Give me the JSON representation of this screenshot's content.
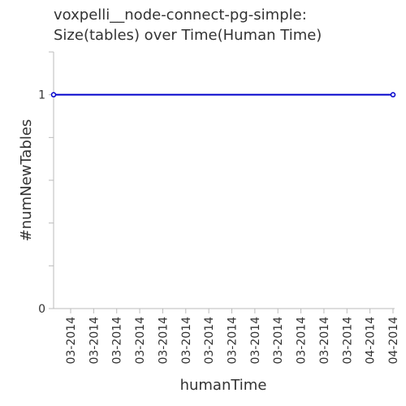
{
  "chart_data": {
    "type": "line",
    "title": [
      "voxpelli__node-connect-pg-simple:",
      "Size(tables) over Time(Human Time)"
    ],
    "xlabel": "humanTime",
    "ylabel": "#numNewTables",
    "x": [
      "03-2014",
      "03-2014",
      "03-2014",
      "03-2014",
      "03-2014",
      "03-2014",
      "03-2014",
      "03-2014",
      "03-2014",
      "03-2014",
      "03-2014",
      "03-2014",
      "03-2014",
      "04-2014",
      "04-2014"
    ],
    "series": [
      {
        "values": [
          1,
          1,
          1,
          1,
          1,
          1,
          1,
          1,
          1,
          1,
          1,
          1,
          1,
          1,
          1
        ]
      }
    ],
    "ylim": [
      0,
      1.2
    ],
    "y_ticks": [
      0,
      1
    ],
    "y_tick_labels": [
      "0",
      "1"
    ],
    "grid": false,
    "colors": {
      "line": "#0000cc",
      "axis": "#bbbbbb",
      "text": "#333333"
    }
  }
}
